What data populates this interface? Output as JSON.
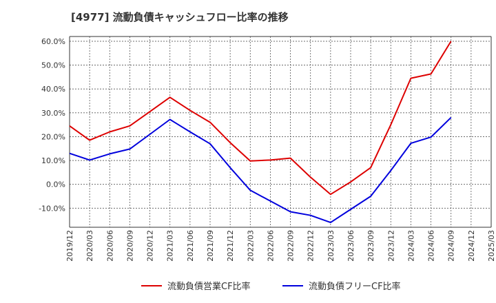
{
  "chart_data": {
    "type": "line",
    "title": "[4977]  流動負債キャッシュフロー比率の推移",
    "xlabel": "",
    "ylabel": "",
    "x": [
      "2019/12",
      "2020/03",
      "2020/06",
      "2020/09",
      "2020/12",
      "2021/03",
      "2021/06",
      "2021/09",
      "2021/12",
      "2022/03",
      "2022/06",
      "2022/09",
      "2022/12",
      "2023/03",
      "2023/06",
      "2023/09",
      "2023/12",
      "2024/03",
      "2024/06",
      "2024/09",
      "2024/12",
      "2025/03"
    ],
    "ylim": [
      -18,
      62
    ],
    "yticks": [
      -10,
      0,
      10,
      20,
      30,
      40,
      50,
      60
    ],
    "ytick_labels": [
      "-10.0%",
      "0.0%",
      "10.0%",
      "20.0%",
      "30.0%",
      "40.0%",
      "50.0%",
      "60.0%"
    ],
    "grid": true,
    "legend_position": "bottom",
    "series": [
      {
        "name": "流動負債営業CF比率",
        "color": "#dd0000",
        "values": [
          24.5,
          18.5,
          22.0,
          24.5,
          30.5,
          36.5,
          31.0,
          26.0,
          17.5,
          9.8,
          10.2,
          11.0,
          3.0,
          -4.2,
          1.0,
          7.0,
          25.0,
          44.5,
          46.3,
          60.0,
          null,
          null
        ]
      },
      {
        "name": "流動負債フリーCF比率",
        "color": "#0000dd",
        "values": [
          13.0,
          10.2,
          12.8,
          14.8,
          21.0,
          27.2,
          22.0,
          17.0,
          7.0,
          -2.5,
          -7.0,
          -11.5,
          -13.0,
          -16.0,
          -10.5,
          -5.0,
          5.8,
          17.2,
          19.8,
          28.0,
          null,
          null
        ]
      }
    ]
  }
}
